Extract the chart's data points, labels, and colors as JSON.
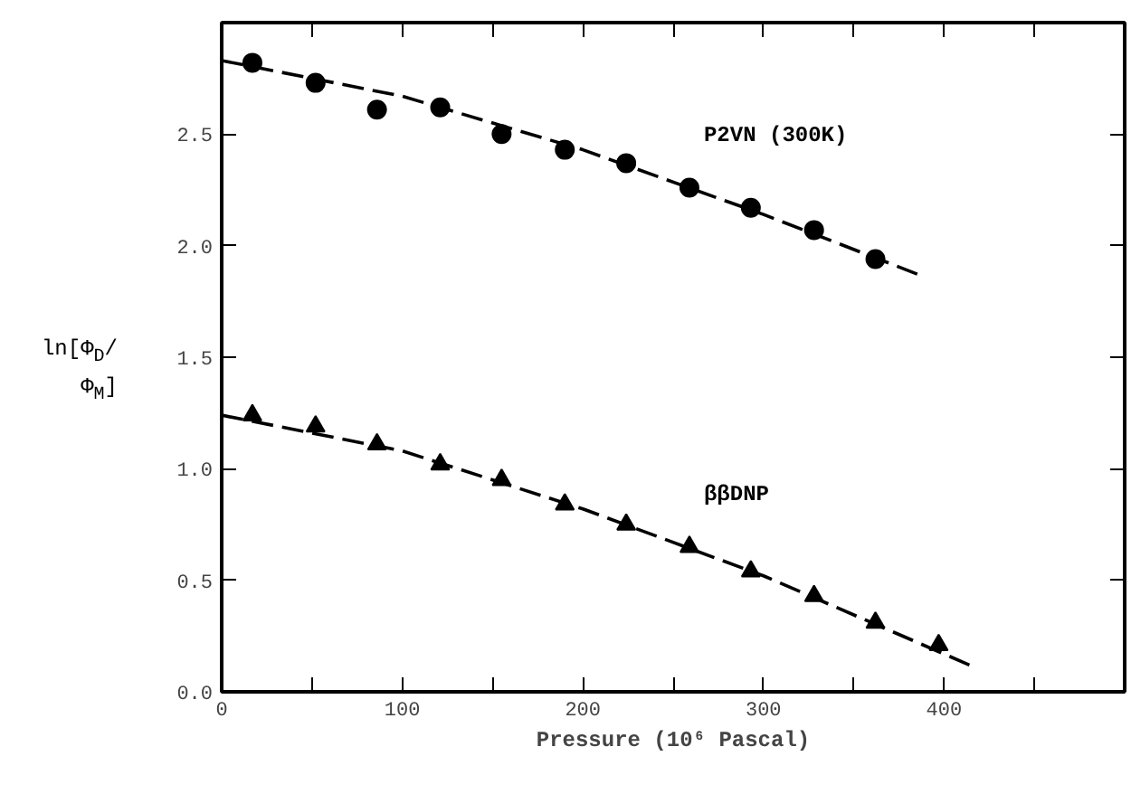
{
  "chart_data": {
    "type": "scatter",
    "xlabel": "Pressure (10⁶ Pascal)",
    "ylabel": "ln[Φ$_{D}$/Φ$_{M}$]",
    "xlim": [
      0,
      500
    ],
    "ylim": [
      0,
      3
    ],
    "xticks": [
      0,
      {
        "value": 50,
        "label": null
      },
      100,
      {
        "value": 150,
        "label": null
      },
      200,
      {
        "value": 250,
        "label": null
      },
      300,
      {
        "value": 350,
        "label": null
      },
      400,
      {
        "value": 450,
        "label": null
      }
    ],
    "yticks": [
      {
        "value": 0,
        "label": "0.0"
      },
      0.5,
      {
        "value": 1,
        "label": "1.0"
      },
      1.5,
      {
        "value": 2,
        "label": "2.0"
      },
      2.5
    ],
    "grid": false,
    "series": [
      {
        "name": "P2VN (300K)",
        "marker": "circle",
        "color": "#000000",
        "x": [
          17,
          52,
          86,
          121,
          155,
          190,
          224,
          259,
          293,
          328,
          362
        ],
        "values": [
          2.82,
          2.73,
          2.61,
          2.62,
          2.5,
          2.43,
          2.37,
          2.26,
          2.17,
          2.07,
          1.94
        ]
      },
      {
        "type": "line",
        "line_style": "dashed",
        "marker": "none",
        "color": "#000000",
        "x": [
          0,
          100,
          200,
          300,
          386
        ],
        "values": [
          2.83,
          2.67,
          2.43,
          2.14,
          1.87
        ]
      },
      {
        "name": "ββDNP",
        "marker": "triangle",
        "color": "#000000",
        "x": [
          17,
          52,
          86,
          121,
          155,
          190,
          224,
          259,
          293,
          328,
          362,
          397
        ],
        "values": [
          1.24,
          1.19,
          1.11,
          1.02,
          0.95,
          0.84,
          0.75,
          0.65,
          0.54,
          0.43,
          0.31,
          0.21
        ]
      },
      {
        "type": "line",
        "line_style": "dashed",
        "marker": "none",
        "color": "#000000",
        "x": [
          0,
          100,
          200,
          300,
          417
        ],
        "values": [
          1.24,
          1.08,
          0.82,
          0.52,
          0.11
        ]
      }
    ]
  }
}
